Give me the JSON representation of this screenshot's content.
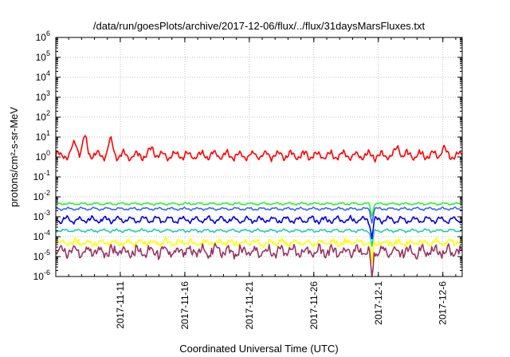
{
  "chart_data": {
    "type": "line",
    "title": "/data/run/goesPlots/archive/2017-12-06/flux/../flux/31daysMarsFluxes.txt",
    "xlabel": "Coordinated Universal Time (UTC)",
    "ylabel": "protons/cm²-s-sr-MeV",
    "y_scale": "log",
    "ylim": [
      1e-06,
      1000000.0
    ],
    "xlim": [
      "2017-11-06T00:00",
      "2017-12-07T12:00"
    ],
    "grid": true,
    "x_tick_labels": [
      "2017-11-11",
      "2017-11-16",
      "2017-11-21",
      "2017-11-26",
      "2017-12-1",
      "2017-12-6"
    ],
    "x_tick_dates": [
      "2017-11-11",
      "2017-11-16",
      "2017-11-21",
      "2017-11-26",
      "2017-12-01",
      "2017-12-06"
    ],
    "y_tick_labels": [
      {
        "base": "10",
        "exp": "-6"
      },
      {
        "base": "10",
        "exp": "-5"
      },
      {
        "base": "10",
        "exp": "-4"
      },
      {
        "base": "10",
        "exp": "-3"
      },
      {
        "base": "10",
        "exp": "-2"
      },
      {
        "base": "10",
        "exp": "-1"
      },
      {
        "base": "10",
        "exp": "0"
      },
      {
        "base": "10",
        "exp": "1"
      },
      {
        "base": "10",
        "exp": "2"
      },
      {
        "base": "10",
        "exp": "3"
      },
      {
        "base": "10",
        "exp": "4"
      },
      {
        "base": "10",
        "exp": "5"
      },
      {
        "base": "10",
        "exp": "6"
      }
    ],
    "dip_date": "2017-11-30T12:00",
    "series": [
      {
        "color": "#ff0000",
        "typical_value": 1.2,
        "variation_decades": 0.25,
        "dip_decades": 0,
        "spikes": [
          {
            "date": "2017-11-07T12:00",
            "value": 6
          },
          {
            "date": "2017-11-08T06:00",
            "value": 8
          },
          {
            "date": "2017-11-10T06:00",
            "value": 6
          },
          {
            "date": "2017-11-13T12:00",
            "value": 2.5
          },
          {
            "date": "2017-12-02T12:00",
            "value": 3
          },
          {
            "date": "2017-12-06T00:00",
            "value": 2.5
          }
        ]
      },
      {
        "color": "#33ee33",
        "typical_value": 0.0045,
        "variation_decades": 0.06,
        "dip_decades": 0.6,
        "spikes": []
      },
      {
        "color": "#3366ff",
        "typical_value": 0.0025,
        "variation_decades": 0.07,
        "dip_decades": 0.7,
        "spikes": []
      },
      {
        "color": "#0000dd",
        "typical_value": 0.0007,
        "variation_decades": 0.18,
        "dip_decades": 0.9,
        "spikes": []
      },
      {
        "color": "#22ccaa",
        "typical_value": 0.0002,
        "variation_decades": 0.08,
        "dip_decades": 0.8,
        "spikes": []
      },
      {
        "color": "#ffff00",
        "typical_value": 5e-05,
        "variation_decades": 0.15,
        "dip_decades": 1.0,
        "spikes": []
      },
      {
        "color": "#993366",
        "typical_value": 1.8e-05,
        "variation_decades": 0.25,
        "dip_decades": 1.6,
        "spikes": []
      }
    ]
  }
}
